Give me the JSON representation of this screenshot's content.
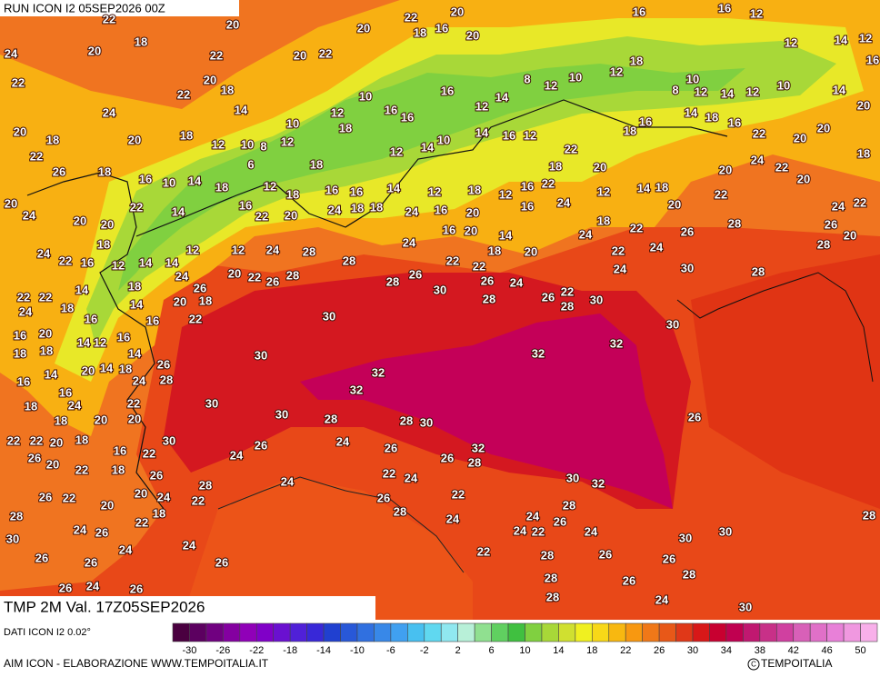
{
  "header": {
    "run": "RUN ICON I2 05SEP2026 00Z"
  },
  "footer": {
    "title": "TMP 2M Val. 17Z05SEP2026",
    "source": "DATI ICON I2 0.02°",
    "credit": "AIM ICON - ELABORAZIONE WWW.TEMPOITALIA.IT",
    "logo": "TEMPOITALIA"
  },
  "legend": {
    "range": [
      -32,
      52
    ],
    "colors": [
      "#4a0040",
      "#5c0060",
      "#700080",
      "#8400a0",
      "#9000b8",
      "#8000c8",
      "#6a10d0",
      "#5020d8",
      "#3828d8",
      "#2040d0",
      "#2858d8",
      "#3070e0",
      "#3888e8",
      "#40a0f0",
      "#48c0f0",
      "#60d8f0",
      "#90e8f0",
      "#b8f0d8",
      "#90e090",
      "#60d060",
      "#40c040",
      "#80d040",
      "#a8d838",
      "#d0e030",
      "#f0f020",
      "#f8d818",
      "#f8b810",
      "#f89810",
      "#f07818",
      "#e85818",
      "#e03818",
      "#d81818",
      "#c80030",
      "#c00050",
      "#c01870",
      "#c83088",
      "#d040a0",
      "#d860b8",
      "#e070c8",
      "#e880d8",
      "#f098e0",
      "#f8b0ea"
    ],
    "ticks": [
      -30,
      -26,
      -22,
      -18,
      -14,
      -10,
      -6,
      -2,
      2,
      6,
      10,
      14,
      18,
      22,
      26,
      30,
      34,
      38,
      42,
      46,
      50
    ]
  },
  "map": {
    "labels": [
      22,
      20,
      18,
      24,
      20,
      22,
      22,
      20,
      22,
      20,
      22,
      18,
      16,
      20,
      20,
      16,
      16,
      12,
      12,
      14,
      12,
      16,
      24,
      22,
      20,
      18,
      14,
      10,
      12,
      10,
      16,
      16,
      16,
      12,
      14,
      8,
      12,
      10,
      12,
      18,
      10,
      8,
      12,
      14,
      12,
      10,
      14,
      20,
      20,
      18,
      20,
      18,
      12,
      10,
      6,
      8,
      12,
      18,
      18,
      12,
      14,
      10,
      14,
      16,
      12,
      22,
      20,
      18,
      16,
      14,
      18,
      16,
      22,
      20,
      20,
      18,
      24,
      22,
      20,
      20,
      22,
      26,
      18,
      16,
      10,
      14,
      18,
      12,
      18,
      16,
      16,
      14,
      12,
      18,
      12,
      16,
      22,
      18,
      24,
      12,
      14,
      18,
      22,
      24,
      22,
      20,
      24,
      20,
      20,
      22,
      14,
      16,
      22,
      20,
      24,
      18,
      18,
      24,
      16,
      20,
      16,
      18,
      22,
      20,
      26,
      28,
      26,
      20,
      28,
      24,
      22,
      16,
      18,
      12,
      14,
      14,
      12,
      12,
      24,
      28,
      28,
      24,
      16,
      20,
      18,
      14,
      20,
      24,
      22,
      24,
      24,
      30,
      28,
      22,
      22,
      24,
      18,
      16,
      14,
      18,
      14,
      24,
      26,
      20,
      18,
      20,
      22,
      26,
      28,
      28,
      26,
      30,
      22,
      22,
      26,
      28,
      24,
      26,
      22,
      28,
      30,
      30,
      30,
      16,
      22,
      16,
      20,
      18,
      18,
      14,
      12,
      16,
      14,
      32,
      32,
      30,
      32,
      16,
      14,
      20,
      14,
      18,
      26,
      28,
      24,
      32,
      16,
      18,
      24,
      30,
      22,
      30,
      18,
      20,
      20,
      26,
      28,
      28,
      30,
      22,
      22,
      20,
      18,
      30,
      16,
      22,
      24,
      26,
      24,
      26,
      32,
      26,
      20,
      22,
      18,
      26,
      26,
      28,
      22,
      24,
      30,
      32,
      28,
      24,
      20,
      24,
      22,
      26,
      22,
      20,
      26,
      22,
      28,
      22,
      18,
      28,
      24,
      24,
      28,
      26,
      24,
      26,
      24,
      22,
      24,
      30,
      30,
      30,
      24,
      24,
      26,
      22,
      28,
      26,
      26,
      26,
      26,
      28,
      28,
      26,
      26,
      24,
      26,
      28,
      28,
      24,
      30
    ]
  }
}
